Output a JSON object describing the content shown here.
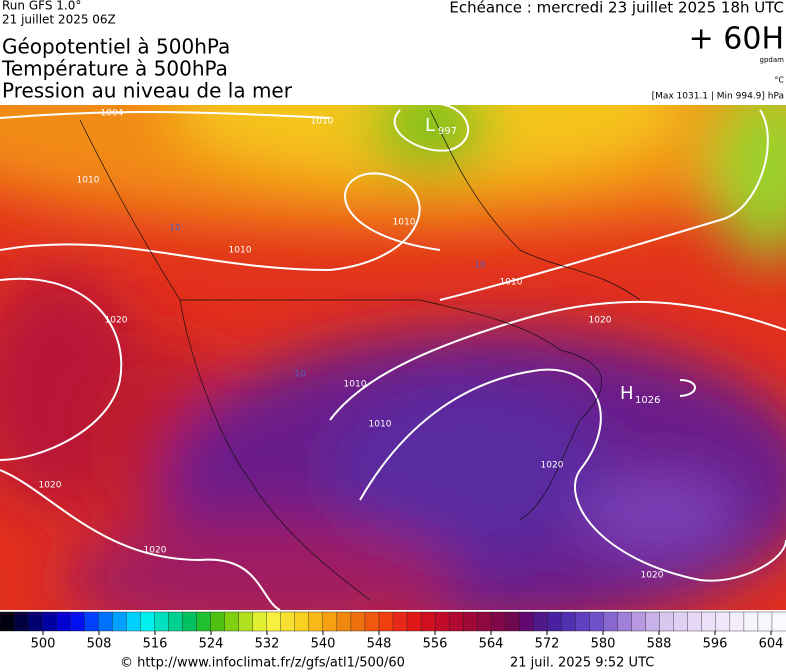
{
  "header": {
    "run": "Run GFS 1.0°",
    "run_date": "21 juillet 2025 06Z",
    "valid": "Echéance : mercredi 23 juillet 2025 18h UTC",
    "lead": "+ 60H",
    "unit_geo": "gpdam",
    "unit_temp": "°C",
    "extremes": "[Max 1031.1 | Min 994.9] hPa",
    "titles": [
      "Géopotentiel à 500hPa",
      "Température à 500hPa",
      "Pression au niveau de la mer"
    ]
  },
  "map": {
    "labels": [
      "1004",
      "1010",
      "1010",
      "1010",
      "1010",
      "1010",
      "1010",
      "1010",
      "1020",
      "1020",
      "1020",
      "1020",
      "1020",
      "1020",
      "10",
      "10",
      "10"
    ],
    "low": {
      "symbol": "L",
      "value": "997"
    },
    "high": {
      "symbol": "H",
      "value": "1026"
    }
  },
  "colorbar": {
    "ticks": [
      500,
      508,
      516,
      524,
      532,
      540,
      548,
      556,
      564,
      572,
      580,
      588,
      596,
      604
    ]
  },
  "footer": {
    "url": "© http://www.infoclimat.fr/z/gfs/atl1/500/60",
    "timestamp": "21 juil. 2025  9:52 UTC"
  }
}
